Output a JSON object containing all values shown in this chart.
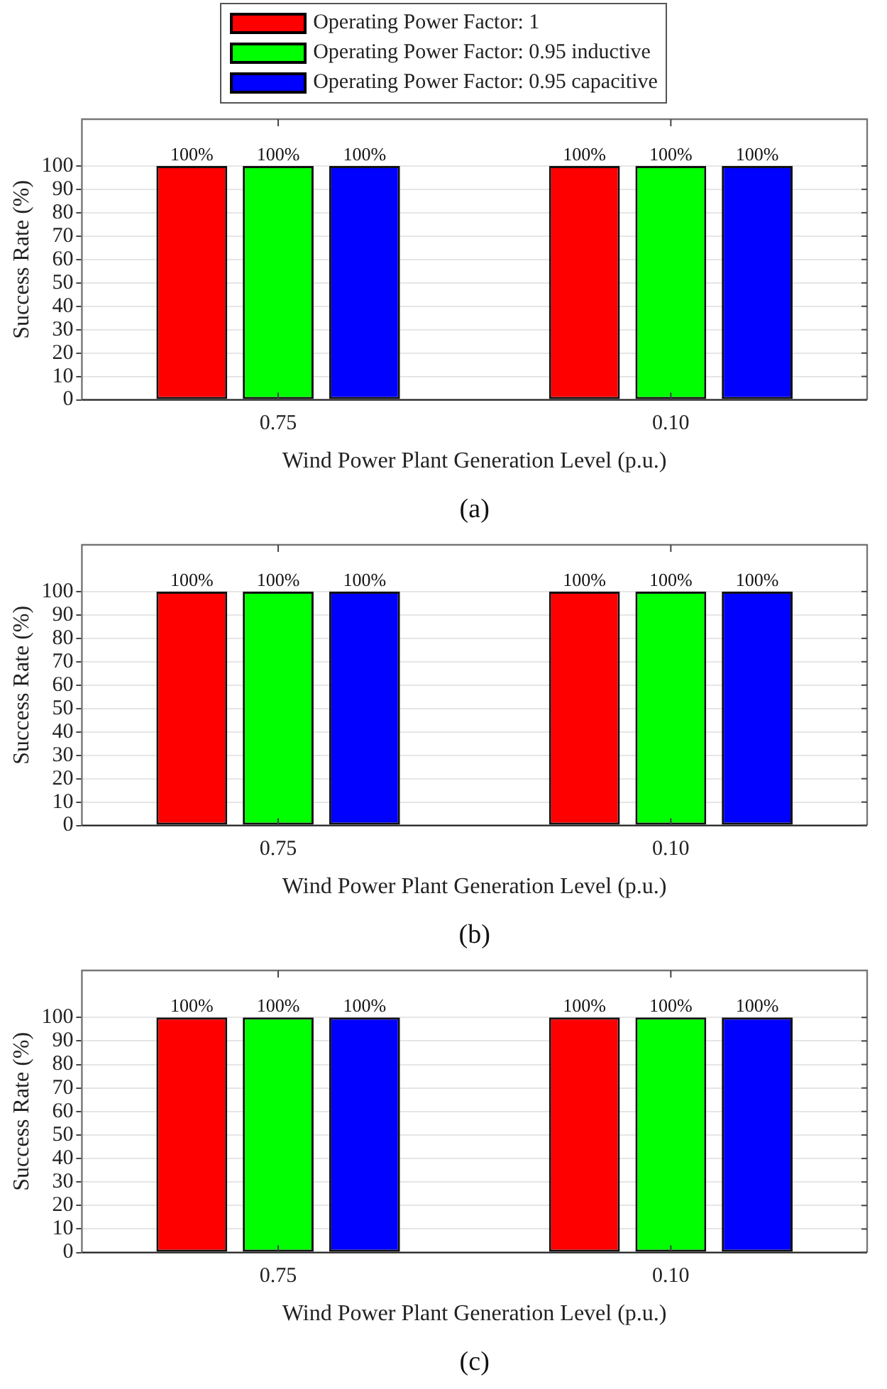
{
  "chart_data": [
    {
      "type": "bar",
      "xlabel": "Wind Power Plant Generation Level (p.u.)",
      "ylabel": "Success Rate (%)",
      "categories": [
        "0.75",
        "0.10"
      ],
      "ylim": [
        0,
        120
      ],
      "yticks": [
        0,
        10,
        20,
        30,
        40,
        50,
        60,
        70,
        80,
        90,
        100
      ],
      "grid": "y",
      "legend": "top",
      "annotations": [
        "(a)"
      ],
      "series": [
        {
          "name": "Operating Power Factor: 1",
          "color": "#ff0000",
          "values": [
            100,
            100
          ],
          "value_labels": [
            "100%",
            "100%"
          ]
        },
        {
          "name": "Operating Power Factor: 0.95 inductive",
          "color": "#00ff00",
          "values": [
            100,
            100
          ],
          "value_labels": [
            "100%",
            "100%"
          ]
        },
        {
          "name": "Operating Power Factor: 0.95 capacitive",
          "color": "#0000ff",
          "values": [
            100,
            100
          ],
          "value_labels": [
            "100%",
            "100%"
          ]
        }
      ]
    },
    {
      "type": "bar",
      "xlabel": "Wind Power Plant Generation Level (p.u.)",
      "ylabel": "Success Rate (%)",
      "categories": [
        "0.75",
        "0.10"
      ],
      "ylim": [
        0,
        120
      ],
      "yticks": [
        0,
        10,
        20,
        30,
        40,
        50,
        60,
        70,
        80,
        90,
        100
      ],
      "grid": "y",
      "annotations": [
        "(b)"
      ],
      "series": [
        {
          "color": "#ff0000",
          "values": [
            100,
            100
          ],
          "value_labels": [
            "100%",
            "100%"
          ]
        },
        {
          "color": "#00ff00",
          "values": [
            100,
            100
          ],
          "value_labels": [
            "100%",
            "100%"
          ]
        },
        {
          "color": "#0000ff",
          "values": [
            100,
            100
          ],
          "value_labels": [
            "100%",
            "100%"
          ]
        }
      ]
    },
    {
      "type": "bar",
      "xlabel": "Wind Power Plant Generation Level (p.u.)",
      "ylabel": "Success Rate (%)",
      "categories": [
        "0.75",
        "0.10"
      ],
      "ylim": [
        0,
        120
      ],
      "yticks": [
        0,
        10,
        20,
        30,
        40,
        50,
        60,
        70,
        80,
        90,
        100
      ],
      "grid": "y",
      "annotations": [
        "(c)"
      ],
      "series": [
        {
          "color": "#ff0000",
          "values": [
            100,
            100
          ],
          "value_labels": [
            "100%",
            "100%"
          ]
        },
        {
          "color": "#00ff00",
          "values": [
            100,
            100
          ],
          "value_labels": [
            "100%",
            "100%"
          ]
        },
        {
          "color": "#0000ff",
          "values": [
            100,
            100
          ],
          "value_labels": [
            "100%",
            "100%"
          ]
        }
      ]
    }
  ]
}
